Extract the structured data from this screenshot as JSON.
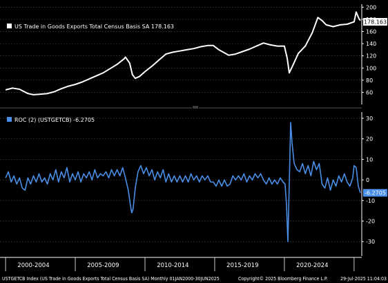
{
  "chart_data": [
    {
      "type": "line",
      "title": "US Trade in Goods Exports Total Census Basis SA",
      "legend_label": "US Trade in Goods Exports Total Census Basis SA 178.163",
      "last_value_label": "178.163",
      "line_color": "#ffffff",
      "grid": true,
      "legend_position": "top-left",
      "ylim": [
        40,
        205
      ],
      "yticks": [
        60,
        80,
        100,
        120,
        140,
        160,
        180,
        200
      ],
      "series": [
        {
          "values": [
            [
              2000.0,
              64
            ],
            [
              2000.5,
              67
            ],
            [
              2001.0,
              65
            ],
            [
              2001.6,
              58
            ],
            [
              2002.0,
              56
            ],
            [
              2002.5,
              57
            ],
            [
              2003.0,
              58
            ],
            [
              2003.5,
              61
            ],
            [
              2004.0,
              66
            ],
            [
              2004.5,
              70
            ],
            [
              2005.0,
              73
            ],
            [
              2005.5,
              77
            ],
            [
              2006.0,
              82
            ],
            [
              2006.5,
              87
            ],
            [
              2007.0,
              92
            ],
            [
              2007.5,
              99
            ],
            [
              2008.0,
              106
            ],
            [
              2008.5,
              115
            ],
            [
              2008.6,
              118
            ],
            [
              2008.9,
              108
            ],
            [
              2009.1,
              89
            ],
            [
              2009.3,
              83
            ],
            [
              2009.6,
              86
            ],
            [
              2010.0,
              94
            ],
            [
              2010.5,
              103
            ],
            [
              2011.0,
              113
            ],
            [
              2011.5,
              123
            ],
            [
              2012.0,
              126
            ],
            [
              2012.5,
              128
            ],
            [
              2013.0,
              130
            ],
            [
              2013.5,
              132
            ],
            [
              2014.0,
              135
            ],
            [
              2014.5,
              137
            ],
            [
              2014.9,
              137
            ],
            [
              2015.3,
              130
            ],
            [
              2016.0,
              121
            ],
            [
              2016.5,
              123
            ],
            [
              2017.0,
              127
            ],
            [
              2017.5,
              131
            ],
            [
              2018.0,
              136
            ],
            [
              2018.5,
              141
            ],
            [
              2019.0,
              138
            ],
            [
              2019.5,
              136
            ],
            [
              2020.0,
              136
            ],
            [
              2020.2,
              116
            ],
            [
              2020.35,
              92
            ],
            [
              2020.6,
              104
            ],
            [
              2021.0,
              124
            ],
            [
              2021.5,
              136
            ],
            [
              2022.0,
              158
            ],
            [
              2022.4,
              183
            ],
            [
              2022.7,
              178
            ],
            [
              2023.0,
              171
            ],
            [
              2023.5,
              168
            ],
            [
              2024.0,
              171
            ],
            [
              2024.5,
              172
            ],
            [
              2025.0,
              176
            ],
            [
              2025.15,
              192
            ],
            [
              2025.35,
              181
            ],
            [
              2025.45,
              178.163
            ]
          ]
        }
      ]
    },
    {
      "type": "line",
      "title": "ROC (2) (USTGETCB)",
      "legend_label": "ROC (2) (USTGETCB) -6.2705",
      "last_value_label": "-6.2705",
      "line_color": "#4a8fe7",
      "grid": true,
      "legend_position": "top-left",
      "ylim": [
        -37,
        33
      ],
      "yticks": [
        30,
        20,
        10,
        0,
        -10,
        -20,
        -30
      ],
      "series": [
        {
          "values": [
            [
              2000.0,
              1
            ],
            [
              2000.2,
              4
            ],
            [
              2000.4,
              -1
            ],
            [
              2000.6,
              2
            ],
            [
              2000.8,
              -2
            ],
            [
              2001.0,
              1
            ],
            [
              2001.2,
              -4
            ],
            [
              2001.4,
              -5
            ],
            [
              2001.6,
              1
            ],
            [
              2001.8,
              -2
            ],
            [
              2002.0,
              2
            ],
            [
              2002.2,
              -1
            ],
            [
              2002.4,
              3
            ],
            [
              2002.6,
              -1
            ],
            [
              2002.8,
              1
            ],
            [
              2003.0,
              -2
            ],
            [
              2003.2,
              3
            ],
            [
              2003.4,
              0
            ],
            [
              2003.6,
              5
            ],
            [
              2003.8,
              -1
            ],
            [
              2004.0,
              4
            ],
            [
              2004.2,
              1
            ],
            [
              2004.4,
              6
            ],
            [
              2004.6,
              -1
            ],
            [
              2004.8,
              3
            ],
            [
              2005.0,
              0
            ],
            [
              2005.2,
              4
            ],
            [
              2005.4,
              -1
            ],
            [
              2005.6,
              3
            ],
            [
              2005.8,
              1
            ],
            [
              2006.0,
              4
            ],
            [
              2006.2,
              0
            ],
            [
              2006.4,
              5
            ],
            [
              2006.6,
              1
            ],
            [
              2006.8,
              3
            ],
            [
              2007.0,
              2
            ],
            [
              2007.2,
              4
            ],
            [
              2007.4,
              1
            ],
            [
              2007.6,
              5
            ],
            [
              2007.8,
              2
            ],
            [
              2008.0,
              5
            ],
            [
              2008.2,
              2
            ],
            [
              2008.4,
              6
            ],
            [
              2008.6,
              1
            ],
            [
              2008.8,
              -5
            ],
            [
              2008.95,
              -12
            ],
            [
              2009.05,
              -16
            ],
            [
              2009.15,
              -14
            ],
            [
              2009.3,
              -4
            ],
            [
              2009.5,
              4
            ],
            [
              2009.7,
              7
            ],
            [
              2009.9,
              3
            ],
            [
              2010.1,
              6
            ],
            [
              2010.3,
              2
            ],
            [
              2010.5,
              5
            ],
            [
              2010.7,
              0
            ],
            [
              2010.9,
              4
            ],
            [
              2011.1,
              1
            ],
            [
              2011.3,
              5
            ],
            [
              2011.5,
              -1
            ],
            [
              2011.7,
              3
            ],
            [
              2011.9,
              -1
            ],
            [
              2012.1,
              2
            ],
            [
              2012.3,
              -1
            ],
            [
              2012.5,
              2
            ],
            [
              2012.7,
              -1
            ],
            [
              2012.9,
              2
            ],
            [
              2013.1,
              -1
            ],
            [
              2013.3,
              3
            ],
            [
              2013.5,
              0
            ],
            [
              2013.7,
              2
            ],
            [
              2013.9,
              -1
            ],
            [
              2014.1,
              2
            ],
            [
              2014.3,
              0
            ],
            [
              2014.5,
              2
            ],
            [
              2014.7,
              -1
            ],
            [
              2014.9,
              -1
            ],
            [
              2015.1,
              -3
            ],
            [
              2015.3,
              0
            ],
            [
              2015.5,
              -3
            ],
            [
              2015.7,
              0
            ],
            [
              2015.9,
              -3
            ],
            [
              2016.1,
              -2
            ],
            [
              2016.3,
              2
            ],
            [
              2016.5,
              0
            ],
            [
              2016.7,
              2
            ],
            [
              2016.9,
              0
            ],
            [
              2017.1,
              3
            ],
            [
              2017.3,
              -1
            ],
            [
              2017.5,
              2
            ],
            [
              2017.7,
              0
            ],
            [
              2017.9,
              3
            ],
            [
              2018.1,
              1
            ],
            [
              2018.3,
              3
            ],
            [
              2018.5,
              0
            ],
            [
              2018.7,
              -2
            ],
            [
              2018.9,
              1
            ],
            [
              2019.1,
              -2
            ],
            [
              2019.3,
              0
            ],
            [
              2019.5,
              -2
            ],
            [
              2019.7,
              1
            ],
            [
              2019.9,
              -1
            ],
            [
              2020.05,
              -2
            ],
            [
              2020.15,
              -12
            ],
            [
              2020.25,
              -30
            ],
            [
              2020.35,
              -2
            ],
            [
              2020.45,
              28
            ],
            [
              2020.55,
              18
            ],
            [
              2020.7,
              8
            ],
            [
              2020.9,
              5
            ],
            [
              2021.1,
              4
            ],
            [
              2021.3,
              8
            ],
            [
              2021.5,
              3
            ],
            [
              2021.7,
              7
            ],
            [
              2021.9,
              2
            ],
            [
              2022.1,
              9
            ],
            [
              2022.3,
              5
            ],
            [
              2022.5,
              8
            ],
            [
              2022.7,
              -2
            ],
            [
              2022.9,
              -4
            ],
            [
              2023.1,
              1
            ],
            [
              2023.3,
              -5
            ],
            [
              2023.5,
              0
            ],
            [
              2023.7,
              -3
            ],
            [
              2023.9,
              2
            ],
            [
              2024.1,
              -1
            ],
            [
              2024.3,
              3
            ],
            [
              2024.5,
              -1
            ],
            [
              2024.7,
              -3
            ],
            [
              2024.9,
              1
            ],
            [
              2025.0,
              7
            ],
            [
              2025.15,
              6
            ],
            [
              2025.3,
              -3
            ],
            [
              2025.45,
              -6.2705
            ]
          ]
        }
      ]
    }
  ],
  "x_axis": {
    "range": [
      1999.6,
      2025.55
    ],
    "separators": [
      2000.0,
      2005.0,
      2010.0,
      2015.0,
      2020.0,
      2025.0
    ],
    "period_labels": [
      {
        "label": "2000-2004",
        "x": 2002.0
      },
      {
        "label": "2005-2009",
        "x": 2007.0
      },
      {
        "label": "2010-2014",
        "x": 2012.0
      },
      {
        "label": "2015-2019",
        "x": 2017.0
      },
      {
        "label": "2020-2024",
        "x": 2022.0
      }
    ]
  },
  "footer": {
    "left": "USTGETCB Index (US Trade in Goods Exports Total Census Basis SA)  Monthly 01JAN2000-30JUN2025",
    "center": "Copyright© 2025 Bloomberg Finance L.P.",
    "right": "29-Jul-2025 11:04:03"
  }
}
